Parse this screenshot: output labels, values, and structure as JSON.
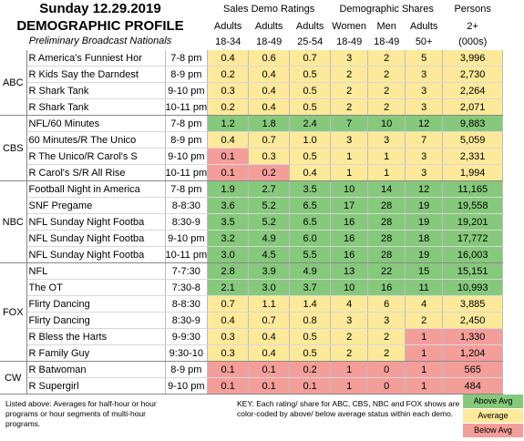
{
  "title": "Sunday 12.29.2019",
  "subtitle": "DEMOGRAPHIC PROFILE",
  "subtitle2": "Preliminary Broadcast Nationals",
  "groups": {
    "sales": "Sales Demo Ratings",
    "shares": "Demographic Shares",
    "persons": "Persons"
  },
  "columns": [
    {
      "top": "Adults",
      "bottom": "18-34"
    },
    {
      "top": "Adults",
      "bottom": "18-49"
    },
    {
      "top": "Adults",
      "bottom": "25-54"
    },
    {
      "top": "Women",
      "bottom": "18-49"
    },
    {
      "top": "Men",
      "bottom": "18-49"
    },
    {
      "top": "Adults",
      "bottom": "50+"
    },
    {
      "top": "2+",
      "bottom": "(000s)"
    }
  ],
  "colors": {
    "green": "#86c97c",
    "yellow": "#fde99a",
    "red": "#f49e9a"
  },
  "networks": [
    {
      "name": "ABC",
      "rows": [
        {
          "show": "R America's Funniest Hor",
          "time": "7-8 pm",
          "vals": [
            "0.4",
            "0.6",
            "0.7",
            "3",
            "2",
            "5",
            "3,996"
          ],
          "c": "yyyyyyy"
        },
        {
          "show": "R Kids Say the Darndest",
          "time": "8-9 pm",
          "vals": [
            "0.2",
            "0.4",
            "0.5",
            "2",
            "2",
            "3",
            "2,730"
          ],
          "c": "yyyyyyy"
        },
        {
          "show": "R Shark Tank",
          "time": "9-10 pm",
          "vals": [
            "0.3",
            "0.4",
            "0.5",
            "2",
            "2",
            "3",
            "2,264"
          ],
          "c": "yyyyyyy"
        },
        {
          "show": "R Shark Tank",
          "time": "10-11 pm",
          "vals": [
            "0.2",
            "0.4",
            "0.5",
            "2",
            "2",
            "3",
            "2,071"
          ],
          "c": "yyyyyyy"
        }
      ]
    },
    {
      "name": "CBS",
      "rows": [
        {
          "show": "NFL/60 Minutes",
          "time": "7-8 pm",
          "vals": [
            "1.2",
            "1.8",
            "2.4",
            "7",
            "10",
            "12",
            "9,883"
          ],
          "c": "ggggggg"
        },
        {
          "show": "60 Minutes/R The Unico",
          "time": "8-9 pm",
          "vals": [
            "0.4",
            "0.7",
            "1.0",
            "3",
            "3",
            "7",
            "5,059"
          ],
          "c": "yyyyyyy"
        },
        {
          "show": "R The Unico/R Carol's S",
          "time": "9-10 pm",
          "vals": [
            "0.1",
            "0.3",
            "0.5",
            "1",
            "1",
            "3",
            "2,331"
          ],
          "c": "ryyyyyy"
        },
        {
          "show": "R Carol's S/R All Rise",
          "time": "10-11 pm",
          "vals": [
            "0.1",
            "0.2",
            "0.4",
            "1",
            "1",
            "3",
            "1,994"
          ],
          "c": "rryyyyy"
        }
      ]
    },
    {
      "name": "NBC",
      "rows": [
        {
          "show": "Football Night in America",
          "time": "7-8 pm",
          "vals": [
            "1.9",
            "2.7",
            "3.5",
            "10",
            "14",
            "12",
            "11,165"
          ],
          "c": "ggggggg"
        },
        {
          "show": "SNF Pregame",
          "time": "8-8:30",
          "vals": [
            "3.6",
            "5.2",
            "6.5",
            "17",
            "28",
            "19",
            "19,558"
          ],
          "c": "ggggggg"
        },
        {
          "show": "NFL Sunday Night Footba",
          "time": "8:30-9",
          "vals": [
            "3.5",
            "5.2",
            "6.5",
            "16",
            "28",
            "19",
            "19,201"
          ],
          "c": "ggggggg"
        },
        {
          "show": "NFL Sunday Night Footba",
          "time": "9-10 pm",
          "vals": [
            "3.2",
            "4.9",
            "6.0",
            "16",
            "28",
            "18",
            "17,772"
          ],
          "c": "ggggggg"
        },
        {
          "show": "NFL Sunday Night Footba",
          "time": "10-11 pm",
          "vals": [
            "3.0",
            "4.5",
            "5.5",
            "16",
            "28",
            "19",
            "16,003"
          ],
          "c": "ggggggg"
        }
      ]
    },
    {
      "name": "FOX",
      "rows": [
        {
          "show": "NFL",
          "time": "7-7:30",
          "vals": [
            "2.8",
            "3.9",
            "4.9",
            "13",
            "22",
            "15",
            "15,151"
          ],
          "c": "ggggggg"
        },
        {
          "show": "The OT",
          "time": "7:30-8",
          "vals": [
            "2.1",
            "3.0",
            "3.7",
            "10",
            "16",
            "11",
            "10,993"
          ],
          "c": "ggggggg"
        },
        {
          "show": "Flirty Dancing",
          "time": "8-8:30",
          "vals": [
            "0.7",
            "1.1",
            "1.4",
            "4",
            "6",
            "4",
            "3,885"
          ],
          "c": "yyyyyyy"
        },
        {
          "show": "Flirty Dancing",
          "time": "8:30-9",
          "vals": [
            "0.4",
            "0.7",
            "0.8",
            "3",
            "3",
            "2",
            "2,450"
          ],
          "c": "yyyyyyy"
        },
        {
          "show": "R Bless the Harts",
          "time": "9-9:30",
          "vals": [
            "0.3",
            "0.4",
            "0.5",
            "2",
            "2",
            "1",
            "1,330"
          ],
          "c": "yyyyyrr"
        },
        {
          "show": "R Family Guy",
          "time": "9:30-10",
          "vals": [
            "0.3",
            "0.4",
            "0.5",
            "2",
            "2",
            "1",
            "1,204"
          ],
          "c": "yyyyyrr"
        }
      ]
    },
    {
      "name": "CW",
      "rows": [
        {
          "show": "R Batwoman",
          "time": "8-9 pm",
          "vals": [
            "0.1",
            "0.1",
            "0.2",
            "1",
            "0",
            "1",
            "565"
          ],
          "c": "rrrrrrr"
        },
        {
          "show": "R Supergirl",
          "time": "9-10 pm",
          "vals": [
            "0.1",
            "0.1",
            "0.1",
            "1",
            "0",
            "1",
            "484"
          ],
          "c": "rrrrrrr"
        }
      ]
    }
  ],
  "footnote": "Listed above: Averages for half-hour or hour programs or hour segments of multi-hour programs.",
  "key": "KEY: Each rating/ share for ABC, CBS, NBC and FOX shows are color-coded by above/ below average status within each demo.",
  "legend": {
    "above": "Above Avg",
    "average": "Average",
    "below": "Below Avg"
  }
}
